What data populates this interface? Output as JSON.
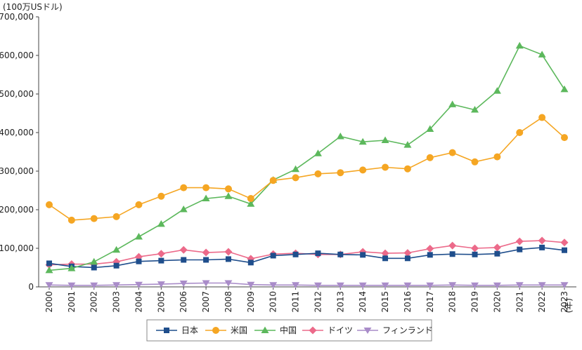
{
  "chart_data": {
    "type": "line",
    "ylabel": "(100万USドル)",
    "xunit": "(年)",
    "ylim": [
      0,
      700000
    ],
    "yticks": [
      0,
      100000,
      200000,
      300000,
      400000,
      500000,
      600000,
      700000
    ],
    "ytick_labels": [
      "0",
      "100,000",
      "200,000",
      "300,000",
      "400,000",
      "500,000",
      "600,000",
      "700,000"
    ],
    "categories": [
      "2000",
      "2001",
      "2002",
      "2003",
      "2004",
      "2005",
      "2006",
      "2007",
      "2008",
      "2009",
      "2010",
      "2011",
      "2012",
      "2013",
      "2014",
      "2015",
      "2016",
      "2017",
      "2018",
      "2019",
      "2020",
      "2021",
      "2022",
      "2023"
    ],
    "legend_position": "bottom",
    "grid": false,
    "series": [
      {
        "name": "日本",
        "color": "#1f4e8c",
        "marker": "square",
        "values": [
          61000,
          53000,
          50000,
          55000,
          66000,
          68000,
          70000,
          70000,
          72000,
          63000,
          81000,
          84000,
          87000,
          84000,
          83000,
          74000,
          74000,
          83000,
          85000,
          84000,
          86000,
          97000,
          102000,
          95000
        ]
      },
      {
        "name": "米国",
        "color": "#f5a623",
        "marker": "circle",
        "values": [
          213000,
          173000,
          177000,
          182000,
          213000,
          235000,
          257000,
          257000,
          254000,
          229000,
          276000,
          283000,
          293000,
          296000,
          303000,
          310000,
          306000,
          335000,
          348000,
          324000,
          337000,
          400000,
          439000,
          387000
        ]
      },
      {
        "name": "中国",
        "color": "#5cb85c",
        "marker": "triangle",
        "values": [
          43000,
          48000,
          65000,
          96000,
          130000,
          163000,
          201000,
          229000,
          235000,
          215000,
          277000,
          305000,
          346000,
          390000,
          376000,
          380000,
          368000,
          409000,
          473000,
          459000,
          508000,
          625000,
          602000,
          512000
        ]
      },
      {
        "name": "ドイツ",
        "color": "#ec6a8a",
        "marker": "diamond",
        "values": [
          57000,
          59000,
          59000,
          65000,
          78000,
          86000,
          96000,
          89000,
          91000,
          73000,
          85000,
          87000,
          84000,
          84000,
          91000,
          87000,
          88000,
          99000,
          107000,
          100000,
          102000,
          118000,
          120000,
          115000
        ]
      },
      {
        "name": "フィンランド",
        "color": "#a98cc9",
        "marker": "triangle-down",
        "values": [
          5000,
          4000,
          4000,
          5000,
          6000,
          7000,
          9000,
          10000,
          10000,
          6000,
          5000,
          5000,
          4000,
          4000,
          4000,
          4000,
          4000,
          4000,
          5000,
          4000,
          4000,
          5000,
          5000,
          5000
        ]
      }
    ]
  }
}
